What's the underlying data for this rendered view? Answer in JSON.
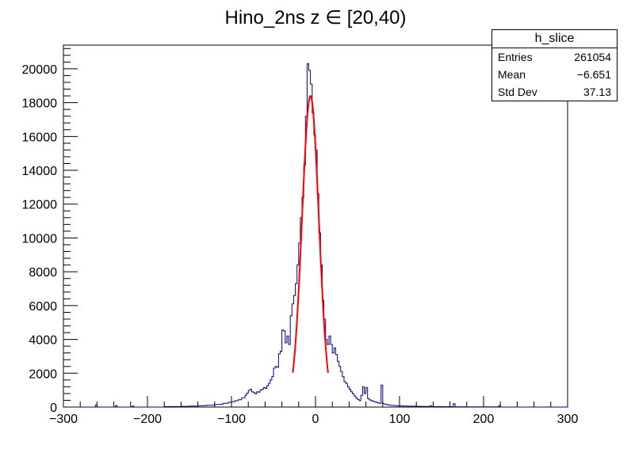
{
  "chart_data": {
    "type": "histogram",
    "title": "Hino_2ns z ∈ [20,40)",
    "xlabel": "",
    "ylabel": "",
    "xlim": [
      -300,
      300
    ],
    "ylim": [
      0,
      21400
    ],
    "xticks": [
      -300,
      -200,
      -100,
      0,
      100,
      200,
      300
    ],
    "yticks": [
      0,
      2000,
      4000,
      6000,
      8000,
      10000,
      12000,
      14000,
      16000,
      18000,
      20000
    ],
    "bin_width": 2,
    "series": [
      {
        "name": "h_slice",
        "style": "step",
        "color": "#000080",
        "points": [
          [
            -300,
            0
          ],
          [
            -264,
            0
          ],
          [
            -262,
            120
          ],
          [
            -260,
            0
          ],
          [
            -240,
            0
          ],
          [
            -238,
            90
          ],
          [
            -236,
            0
          ],
          [
            -220,
            0
          ],
          [
            -218,
            60
          ],
          [
            -216,
            0
          ],
          [
            -190,
            0
          ],
          [
            -180,
            30
          ],
          [
            -160,
            40
          ],
          [
            -150,
            60
          ],
          [
            -140,
            80
          ],
          [
            -130,
            110
          ],
          [
            -120,
            150
          ],
          [
            -112,
            180
          ],
          [
            -110,
            220
          ],
          [
            -104,
            280
          ],
          [
            -100,
            320
          ],
          [
            -96,
            380
          ],
          [
            -92,
            430
          ],
          [
            -88,
            550
          ],
          [
            -84,
            700
          ],
          [
            -82,
            820
          ],
          [
            -80,
            980
          ],
          [
            -78,
            1050
          ],
          [
            -76,
            900
          ],
          [
            -74,
            850
          ],
          [
            -72,
            780
          ],
          [
            -70,
            900
          ],
          [
            -68,
            880
          ],
          [
            -66,
            1000
          ],
          [
            -64,
            1050
          ],
          [
            -62,
            1150
          ],
          [
            -60,
            1100
          ],
          [
            -58,
            1250
          ],
          [
            -56,
            1400
          ],
          [
            -54,
            1600
          ],
          [
            -52,
            1800
          ],
          [
            -50,
            2300
          ],
          [
            -48,
            2400
          ],
          [
            -46,
            2350
          ],
          [
            -44,
            3150
          ],
          [
            -42,
            3300
          ],
          [
            -40,
            4550
          ],
          [
            -38,
            4500
          ],
          [
            -36,
            3800
          ],
          [
            -34,
            4200
          ],
          [
            -32,
            3700
          ],
          [
            -30,
            5400
          ],
          [
            -28,
            6100
          ],
          [
            -26,
            6600
          ],
          [
            -24,
            7300
          ],
          [
            -22,
            8400
          ],
          [
            -20,
            9700
          ],
          [
            -18,
            11200
          ],
          [
            -16,
            12400
          ],
          [
            -14,
            14300
          ],
          [
            -12,
            17200
          ],
          [
            -10,
            20300
          ],
          [
            -8,
            19900
          ],
          [
            -6,
            19100
          ],
          [
            -4,
            17400
          ],
          [
            -2,
            16100
          ],
          [
            0,
            15200
          ],
          [
            2,
            12600
          ],
          [
            4,
            10300
          ],
          [
            6,
            8400
          ],
          [
            8,
            6300
          ],
          [
            10,
            5200
          ],
          [
            12,
            4000
          ],
          [
            14,
            3700
          ],
          [
            16,
            4200
          ],
          [
            18,
            3700
          ],
          [
            20,
            3200
          ],
          [
            22,
            3500
          ],
          [
            24,
            3100
          ],
          [
            26,
            2700
          ],
          [
            28,
            2400
          ],
          [
            30,
            2100
          ],
          [
            32,
            1800
          ],
          [
            34,
            1500
          ],
          [
            36,
            1400
          ],
          [
            38,
            1200
          ],
          [
            40,
            1050
          ],
          [
            42,
            900
          ],
          [
            44,
            780
          ],
          [
            46,
            650
          ],
          [
            48,
            520
          ],
          [
            50,
            450
          ],
          [
            52,
            380
          ],
          [
            54,
            700
          ],
          [
            56,
            1200
          ],
          [
            58,
            800
          ],
          [
            60,
            1150
          ],
          [
            62,
            500
          ],
          [
            64,
            420
          ],
          [
            66,
            380
          ],
          [
            68,
            340
          ],
          [
            70,
            310
          ],
          [
            72,
            280
          ],
          [
            74,
            250
          ],
          [
            76,
            220
          ],
          [
            78,
            1300
          ],
          [
            80,
            200
          ],
          [
            82,
            180
          ],
          [
            84,
            150
          ],
          [
            86,
            130
          ],
          [
            88,
            110
          ],
          [
            90,
            100
          ],
          [
            94,
            80
          ],
          [
            98,
            70
          ],
          [
            104,
            60
          ],
          [
            110,
            50
          ],
          [
            120,
            40
          ],
          [
            130,
            35
          ],
          [
            136,
            80
          ],
          [
            138,
            30
          ],
          [
            150,
            25
          ],
          [
            164,
            200
          ],
          [
            166,
            20
          ],
          [
            180,
            15
          ],
          [
            200,
            10
          ],
          [
            218,
            90
          ],
          [
            220,
            0
          ],
          [
            300,
            0
          ]
        ]
      },
      {
        "name": "fit",
        "style": "curve",
        "color": "#ff0000",
        "mean": -6,
        "sigma": 10,
        "amplitude": 18400,
        "xrange": [
          -27,
          15
        ]
      }
    ]
  },
  "stats_box": {
    "title": "h_slice",
    "entries_label": "Entries",
    "entries_value": "261054",
    "mean_label": "Mean",
    "mean_value": "−6.651",
    "stddev_label": "Std Dev",
    "stddev_value": "37.13"
  }
}
